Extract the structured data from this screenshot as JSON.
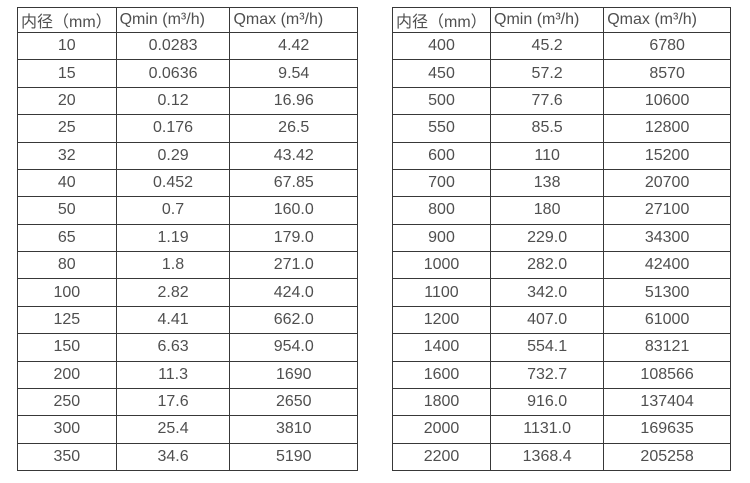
{
  "colors": {
    "background": "#ffffff",
    "border": "#383838",
    "text": "#4f4f4f"
  },
  "tables": [
    {
      "name": "flow-table-left",
      "headers": [
        "内径（mm）",
        "Qmin (m³/h)",
        "Qmax (m³/h)"
      ],
      "rows": [
        [
          "10",
          "0.0283",
          "4.42"
        ],
        [
          "15",
          "0.0636",
          "9.54"
        ],
        [
          "20",
          "0.12",
          "16.96"
        ],
        [
          "25",
          "0.176",
          "26.5"
        ],
        [
          "32",
          "0.29",
          "43.42"
        ],
        [
          "40",
          "0.452",
          "67.85"
        ],
        [
          "50",
          "0.7",
          "160.0"
        ],
        [
          "65",
          "1.19",
          "179.0"
        ],
        [
          "80",
          "1.8",
          "271.0"
        ],
        [
          "100",
          "2.82",
          "424.0"
        ],
        [
          "125",
          "4.41",
          "662.0"
        ],
        [
          "150",
          "6.63",
          "954.0"
        ],
        [
          "200",
          "11.3",
          "1690"
        ],
        [
          "250",
          "17.6",
          "2650"
        ],
        [
          "300",
          "25.4",
          "3810"
        ],
        [
          "350",
          "34.6",
          "5190"
        ]
      ]
    },
    {
      "name": "flow-table-right",
      "headers": [
        "内径（mm）",
        "Qmin (m³/h)",
        "Qmax (m³/h)"
      ],
      "rows": [
        [
          "400",
          "45.2",
          "6780"
        ],
        [
          "450",
          "57.2",
          "8570"
        ],
        [
          "500",
          "77.6",
          "10600"
        ],
        [
          "550",
          "85.5",
          "12800"
        ],
        [
          "600",
          "110",
          "15200"
        ],
        [
          "700",
          "138",
          "20700"
        ],
        [
          "800",
          "180",
          "27100"
        ],
        [
          "900",
          "229.0",
          "34300"
        ],
        [
          "1000",
          "282.0",
          "42400"
        ],
        [
          "1100",
          "342.0",
          "51300"
        ],
        [
          "1200",
          "407.0",
          "61000"
        ],
        [
          "1400",
          "554.1",
          "83121"
        ],
        [
          "1600",
          "732.7",
          "108566"
        ],
        [
          "1800",
          "916.0",
          "137404"
        ],
        [
          "2000",
          "1131.0",
          "169635"
        ],
        [
          "2200",
          "1368.4",
          "205258"
        ]
      ]
    }
  ]
}
